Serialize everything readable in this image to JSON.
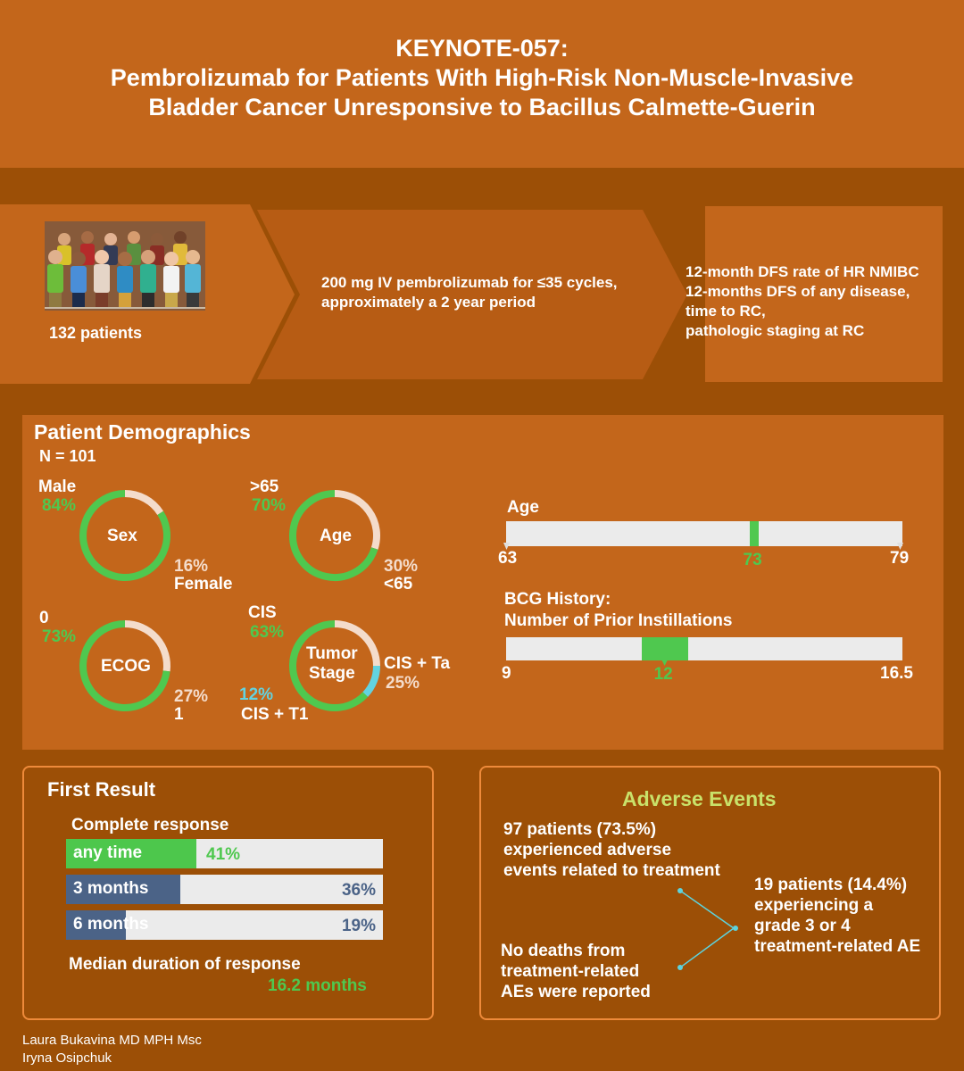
{
  "title": {
    "line1": "KEYNOTE-057:",
    "line2": "Pembrolizumab for Patients With High-Risk Non-Muscle-Invasive",
    "line3": "Bladder Cancer Unresponsive to Bacillus Calmette-Guerin"
  },
  "flow": {
    "patients": "132 patients",
    "treatment_line1": "200 mg IV pembrolizumab for ≤35 cycles,",
    "treatment_line2": "approximately a 2 year period",
    "endpoint_line1": "12-month DFS rate of HR NMIBC",
    "endpoint_line2": "12-months DFS of any disease,",
    "endpoint_line3": "time to RC,",
    "endpoint_line4": "pathologic staging at RC"
  },
  "demographics": {
    "heading": "Patient Demographics",
    "n": "N = 101",
    "sex": {
      "center": "Sex",
      "major_label": "Male",
      "major_pct": "84%",
      "minor_pct": "16%",
      "minor_label": "Female",
      "major_value": 84
    },
    "age": {
      "center": "Age",
      "major_label": ">65",
      "major_pct": "70%",
      "minor_pct": "30%",
      "minor_label": "<65",
      "major_value": 70
    },
    "ecog": {
      "center": "ECOG",
      "major_label": "0",
      "major_pct": "73%",
      "minor_pct": "27%",
      "minor_label": "1",
      "major_value": 73
    },
    "stage": {
      "center_line1": "Tumor",
      "center_line2": "Stage",
      "cis_label": "CIS",
      "cis_pct": "63%",
      "cis_value": 63,
      "ta_label": "CIS + Ta",
      "ta_pct": "25%",
      "ta_value": 25,
      "t1_pct": "12%",
      "t1_label": "CIS + T1",
      "t1_value": 12
    },
    "age_bar": {
      "label": "Age",
      "min": "63",
      "median": "73",
      "max": "79",
      "min_value": 63,
      "median_value": 73,
      "max_value": 79
    },
    "bcg_bar": {
      "label_line1": "BCG History:",
      "label_line2": "Number of Prior  Instillations",
      "min": "9",
      "median": "12",
      "max": "16.5",
      "min_value": 9,
      "median_value": 12,
      "max_value": 16.5
    }
  },
  "first_result": {
    "heading": "First Result",
    "subheading": "Complete response",
    "rows": [
      {
        "label": "any time",
        "pct": "41%",
        "value": 41,
        "color": "#4dc74c"
      },
      {
        "label": "3 months",
        "pct": "36%",
        "value": 36,
        "color": "#4b6387"
      },
      {
        "label": "6 months",
        "pct": "19%",
        "value": 19,
        "color": "#4b6387"
      }
    ],
    "median_label": "Median duration of response",
    "median_value": "16.2 months"
  },
  "adverse": {
    "heading": "Adverse Events",
    "ae_line1": "97 patients (73.5%)",
    "ae_line2": "experienced adverse",
    "ae_line3": "events related to treatment",
    "death_line1": "No deaths from",
    "death_line2": "treatment-related",
    "death_line3": "AEs were reported",
    "grade_line1": "19 patients (14.4%)",
    "grade_line2": "experiencing a",
    "grade_line3": "grade 3 or 4",
    "grade_line4": "treatment-related AE"
  },
  "authors": {
    "line1": "Laura Bukavina MD MPH Msc",
    "line2": "Iryna Osipchuk"
  },
  "colors": {
    "background": "#9c4f06",
    "panel": "#c3661b",
    "green": "#4fc84f",
    "pink": "#f4dccb",
    "cyan": "#62d3e0",
    "yellow_green": "#c9e26a"
  }
}
